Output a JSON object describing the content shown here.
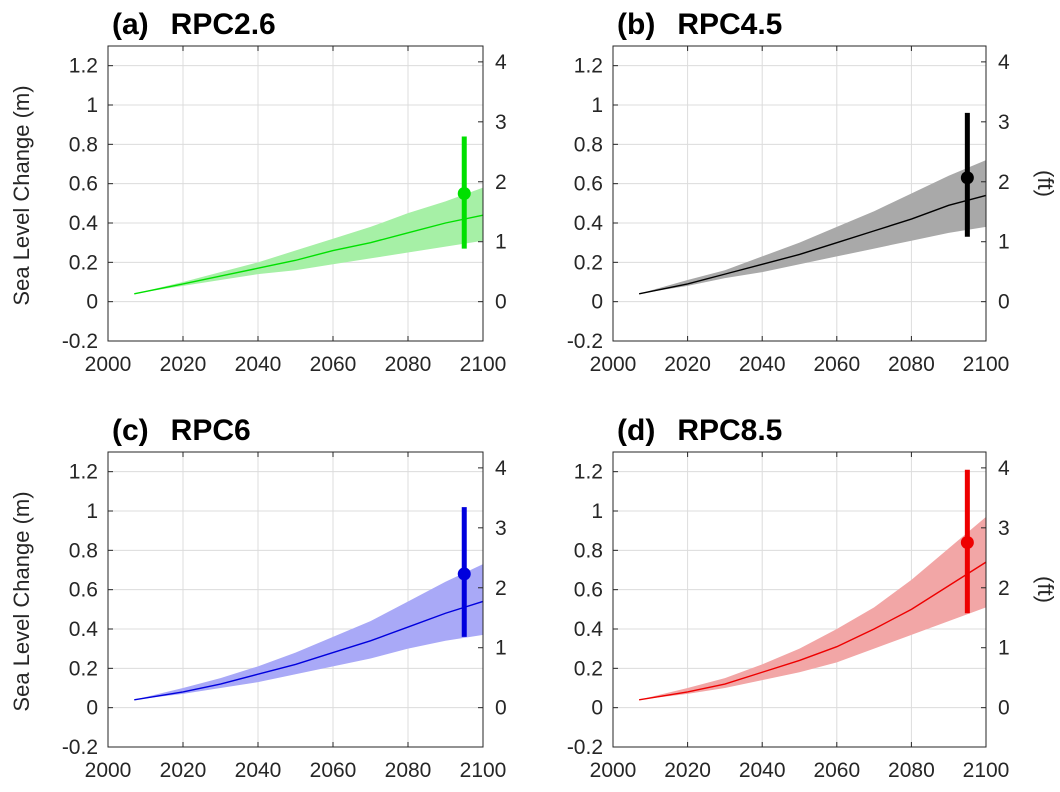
{
  "chart_data": [
    {
      "type": "line",
      "title": "(a)  RPC2.6",
      "panel_tag": "(a)",
      "scenario": "RPC2.6",
      "color": "#00e000",
      "band_color": "#a6f0a6",
      "ylabel": "Sea Level Change (m)",
      "y2label": "",
      "xlim": [
        2000,
        2100
      ],
      "ylim": [
        -0.2,
        1.3
      ],
      "y2lim_ft": [
        -0.656,
        4.265
      ],
      "xticks": [
        "2000",
        "2020",
        "2040",
        "2060",
        "2080",
        "2100"
      ],
      "yticks": [
        "-0.2",
        "0",
        "0.2",
        "0.4",
        "0.6",
        "0.8",
        "1",
        "1.2"
      ],
      "y2ticks": [
        "0",
        "1",
        "2",
        "3",
        "4"
      ],
      "grid": true,
      "series": [
        {
          "x": [
            2007,
            2020,
            2030,
            2040,
            2050,
            2060,
            2070,
            2080,
            2090,
            2100
          ],
          "median": [
            0.04,
            0.09,
            0.13,
            0.17,
            0.21,
            0.26,
            0.3,
            0.35,
            0.4,
            0.44
          ],
          "lower": [
            0.04,
            0.08,
            0.11,
            0.14,
            0.16,
            0.19,
            0.22,
            0.25,
            0.28,
            0.31
          ],
          "upper": [
            0.04,
            0.1,
            0.15,
            0.2,
            0.26,
            0.32,
            0.38,
            0.45,
            0.51,
            0.58
          ]
        }
      ],
      "marker": {
        "x": 2095,
        "value": 0.55,
        "low": 0.27,
        "high": 0.84
      }
    },
    {
      "type": "line",
      "title": "(b)  RPC4.5",
      "panel_tag": "(b)",
      "scenario": "RPC4.5",
      "color": "#000000",
      "band_color": "#a9a9a9",
      "ylabel": "",
      "y2label": "(ft)",
      "xlim": [
        2000,
        2100
      ],
      "ylim": [
        -0.2,
        1.3
      ],
      "y2lim_ft": [
        -0.656,
        4.265
      ],
      "xticks": [
        "2000",
        "2020",
        "2040",
        "2060",
        "2080",
        "2100"
      ],
      "yticks": [
        "-0.2",
        "0",
        "0.2",
        "0.4",
        "0.6",
        "0.8",
        "1",
        "1.2"
      ],
      "y2ticks": [
        "0",
        "1",
        "2",
        "3",
        "4"
      ],
      "grid": true,
      "series": [
        {
          "x": [
            2007,
            2020,
            2030,
            2040,
            2050,
            2060,
            2070,
            2080,
            2090,
            2100
          ],
          "median": [
            0.04,
            0.09,
            0.14,
            0.19,
            0.24,
            0.3,
            0.36,
            0.42,
            0.49,
            0.54
          ],
          "lower": [
            0.04,
            0.08,
            0.12,
            0.15,
            0.19,
            0.23,
            0.27,
            0.31,
            0.35,
            0.38
          ],
          "upper": [
            0.04,
            0.11,
            0.16,
            0.23,
            0.3,
            0.38,
            0.46,
            0.55,
            0.64,
            0.72
          ]
        }
      ],
      "marker": {
        "x": 2095,
        "value": 0.63,
        "low": 0.33,
        "high": 0.96
      }
    },
    {
      "type": "line",
      "title": "(c)  RPC6",
      "panel_tag": "(c)",
      "scenario": "RPC6",
      "color": "#0000dd",
      "band_color": "#a9a9f7",
      "ylabel": "Sea Level Change (m)",
      "y2label": "",
      "xlim": [
        2000,
        2100
      ],
      "ylim": [
        -0.2,
        1.3
      ],
      "y2lim_ft": [
        -0.656,
        4.265
      ],
      "xticks": [
        "2000",
        "2020",
        "2040",
        "2060",
        "2080",
        "2100"
      ],
      "yticks": [
        "-0.2",
        "0",
        "0.2",
        "0.4",
        "0.6",
        "0.8",
        "1",
        "1.2"
      ],
      "y2ticks": [
        "0",
        "1",
        "2",
        "3",
        "4"
      ],
      "grid": true,
      "series": [
        {
          "x": [
            2007,
            2020,
            2030,
            2040,
            2050,
            2060,
            2070,
            2080,
            2090,
            2100
          ],
          "median": [
            0.04,
            0.08,
            0.12,
            0.17,
            0.22,
            0.28,
            0.34,
            0.41,
            0.48,
            0.54
          ],
          "lower": [
            0.04,
            0.07,
            0.1,
            0.13,
            0.17,
            0.21,
            0.25,
            0.3,
            0.34,
            0.37
          ],
          "upper": [
            0.04,
            0.1,
            0.15,
            0.21,
            0.28,
            0.36,
            0.44,
            0.54,
            0.64,
            0.73
          ]
        }
      ],
      "marker": {
        "x": 2095,
        "value": 0.68,
        "low": 0.36,
        "high": 1.02
      }
    },
    {
      "type": "line",
      "title": "(d)  RPC8.5",
      "panel_tag": "(d)",
      "scenario": "RPC8.5",
      "color": "#ee0000",
      "band_color": "#f2a6a6",
      "ylabel": "",
      "y2label": "(ft)",
      "xlim": [
        2000,
        2100
      ],
      "ylim": [
        -0.2,
        1.3
      ],
      "y2lim_ft": [
        -0.656,
        4.265
      ],
      "xticks": [
        "2000",
        "2020",
        "2040",
        "2060",
        "2080",
        "2100"
      ],
      "yticks": [
        "-0.2",
        "0",
        "0.2",
        "0.4",
        "0.6",
        "0.8",
        "1",
        "1.2"
      ],
      "y2ticks": [
        "0",
        "1",
        "2",
        "3",
        "4"
      ],
      "grid": true,
      "series": [
        {
          "x": [
            2007,
            2020,
            2030,
            2040,
            2050,
            2060,
            2070,
            2080,
            2090,
            2100
          ],
          "median": [
            0.04,
            0.08,
            0.12,
            0.18,
            0.24,
            0.31,
            0.4,
            0.5,
            0.62,
            0.74
          ],
          "lower": [
            0.04,
            0.07,
            0.1,
            0.14,
            0.18,
            0.23,
            0.3,
            0.37,
            0.44,
            0.51
          ],
          "upper": [
            0.04,
            0.1,
            0.15,
            0.22,
            0.3,
            0.4,
            0.51,
            0.65,
            0.81,
            0.97
          ]
        }
      ],
      "marker": {
        "x": 2095,
        "value": 0.84,
        "low": 0.48,
        "high": 1.21
      }
    }
  ]
}
